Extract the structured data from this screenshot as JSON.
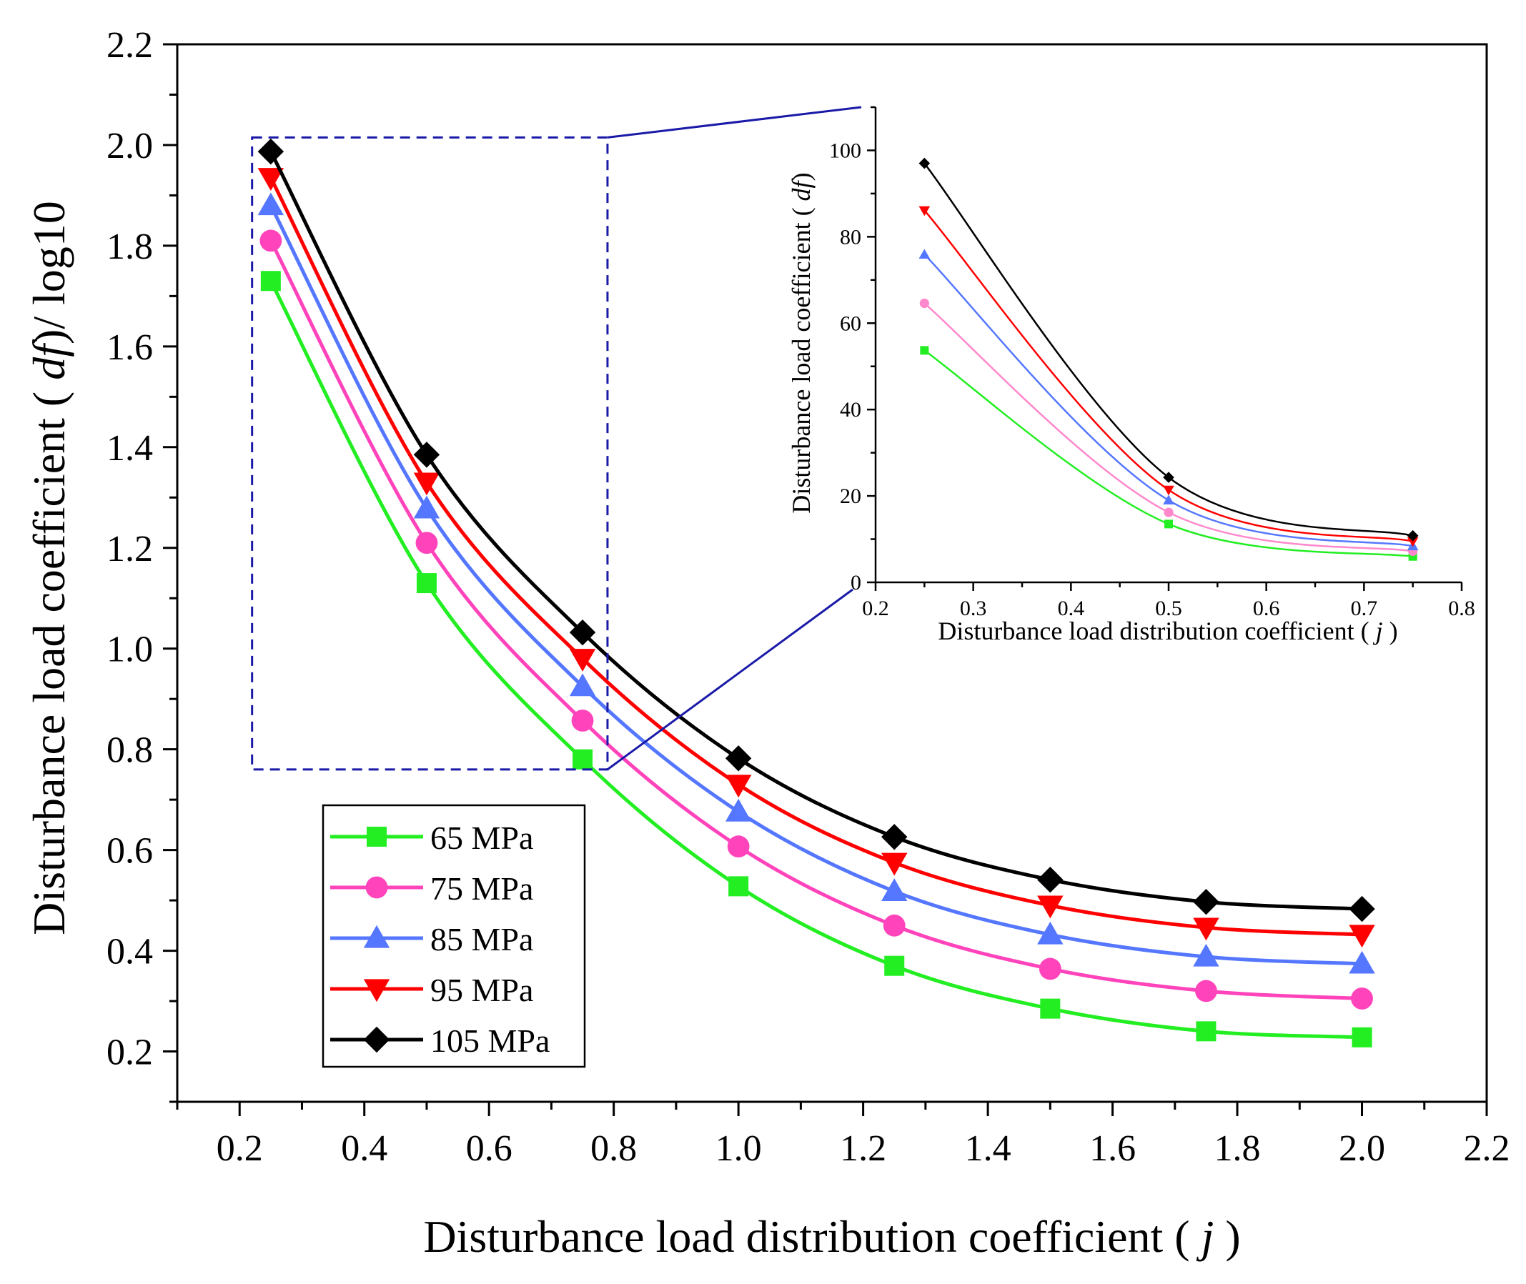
{
  "chart_data": [
    {
      "id": "main",
      "type": "line",
      "xlabel": {
        "pre": "Disturbance load distribution coefficient ( ",
        "var": "j",
        "post": " )"
      },
      "ylabel": {
        "pre": "Disturbance load coefficient ( ",
        "var": "df",
        "post": ")/ log10"
      },
      "xlim": [
        0.1,
        2.2
      ],
      "ylim": [
        0.1,
        2.2
      ],
      "x_ticks": [
        "0.2",
        "0.4",
        "0.6",
        "0.8",
        "1.0",
        "1.2",
        "1.4",
        "1.6",
        "1.8",
        "2.0",
        "2.2"
      ],
      "y_ticks": [
        "0.2",
        "0.4",
        "0.6",
        "0.8",
        "1.0",
        "1.2",
        "1.4",
        "1.6",
        "1.8",
        "2.0",
        "2.2"
      ],
      "x": [
        0.25,
        0.5,
        0.75,
        1.0,
        1.25,
        1.5,
        1.75,
        2.0
      ],
      "legend_position": "lower-left",
      "zoom_box": {
        "x": [
          0.22,
          0.79
        ],
        "y": [
          0.76,
          2.015
        ]
      },
      "series": [
        {
          "name": "65 MPa",
          "color": "#22ee22",
          "marker": "square",
          "values": [
            1.73,
            1.13,
            0.78,
            0.528,
            0.37,
            0.285,
            0.24,
            0.228
          ]
        },
        {
          "name": "75 MPa",
          "color": "#ff44bb",
          "marker": "circle",
          "values": [
            1.81,
            1.21,
            0.857,
            0.607,
            0.45,
            0.364,
            0.32,
            0.305
          ]
        },
        {
          "name": "85 MPa",
          "color": "#5577ff",
          "marker": "triangle-up",
          "values": [
            1.88,
            1.278,
            0.925,
            0.676,
            0.518,
            0.432,
            0.388,
            0.374
          ]
        },
        {
          "name": "95 MPa",
          "color": "#ff0000",
          "marker": "triangle-down",
          "values": [
            1.935,
            1.33,
            0.98,
            0.73,
            0.575,
            0.49,
            0.446,
            0.432
          ]
        },
        {
          "name": "105 MPa",
          "color": "#000000",
          "marker": "diamond",
          "values": [
            1.987,
            1.385,
            1.032,
            0.782,
            0.626,
            0.541,
            0.497,
            0.483
          ]
        }
      ]
    },
    {
      "id": "inset",
      "type": "line",
      "xlabel": {
        "pre": "Disturbance load distribution coefficient ( ",
        "var": "j",
        "post": " )"
      },
      "ylabel": {
        "pre": "Disturbance load coefficient ( ",
        "var": "df",
        "post": ")"
      },
      "xlim": [
        0.2,
        0.8
      ],
      "ylim": [
        0,
        110
      ],
      "x_ticks": [
        "0.2",
        "0.3",
        "0.4",
        "0.5",
        "0.6",
        "0.7",
        "0.8"
      ],
      "y_ticks": [
        "0",
        "20",
        "40",
        "60",
        "80",
        "100"
      ],
      "x": [
        0.25,
        0.5,
        0.75
      ],
      "series": [
        {
          "name": "65 MPa",
          "color": "#22ee22",
          "marker": "square",
          "values": [
            53.7,
            13.5,
            6.0
          ]
        },
        {
          "name": "75 MPa",
          "color": "#ff88cc",
          "marker": "circle",
          "values": [
            64.6,
            16.2,
            7.2
          ]
        },
        {
          "name": "85 MPa",
          "color": "#5577ff",
          "marker": "triangle-up",
          "values": [
            75.9,
            19.0,
            8.4
          ]
        },
        {
          "name": "95 MPa",
          "color": "#ff0000",
          "marker": "triangle-down",
          "values": [
            86.1,
            21.4,
            9.5
          ]
        },
        {
          "name": "105 MPa",
          "color": "#000000",
          "marker": "diamond",
          "values": [
            97.0,
            24.3,
            10.8
          ]
        }
      ]
    }
  ]
}
